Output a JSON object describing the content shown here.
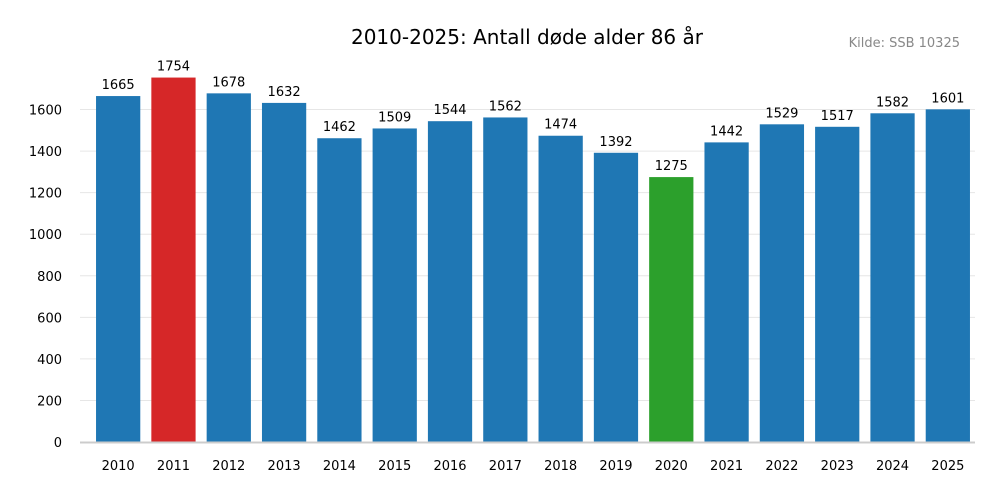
{
  "chart_data": {
    "type": "bar",
    "title": "2010-2025: Antall døde alder 86 år",
    "source": "Kilde: SSB 10325",
    "xlabel": "",
    "ylabel": "",
    "categories": [
      "2010",
      "2011",
      "2012",
      "2013",
      "2014",
      "2015",
      "2016",
      "2017",
      "2018",
      "2019",
      "2020",
      "2021",
      "2022",
      "2023",
      "2024",
      "2025"
    ],
    "values": [
      1665,
      1754,
      1678,
      1632,
      1462,
      1509,
      1544,
      1562,
      1474,
      1392,
      1275,
      1442,
      1529,
      1517,
      1582,
      1601
    ],
    "data_labels": [
      "1665",
      "1754",
      "1678",
      "1632",
      "1462",
      "1509",
      "1544",
      "1562",
      "1474",
      "1392",
      "1275",
      "1442",
      "1529",
      "1517",
      "1582",
      "1601"
    ],
    "ylim": [
      0,
      1800
    ],
    "yticks": [
      0,
      200,
      400,
      600,
      800,
      1000,
      1200,
      1400,
      1600
    ],
    "ytick_labels": [
      "0",
      "200",
      "400",
      "600",
      "800",
      "1000",
      "1200",
      "1400",
      "1600"
    ],
    "grid": true,
    "colors": {
      "default": "#1f77b4",
      "max": "#d62728",
      "min": "#2ca02c",
      "grid": "#e6e6e6",
      "axis": "#cccccc"
    },
    "highlights": {
      "max_category": "2011",
      "min_category": "2020"
    }
  }
}
